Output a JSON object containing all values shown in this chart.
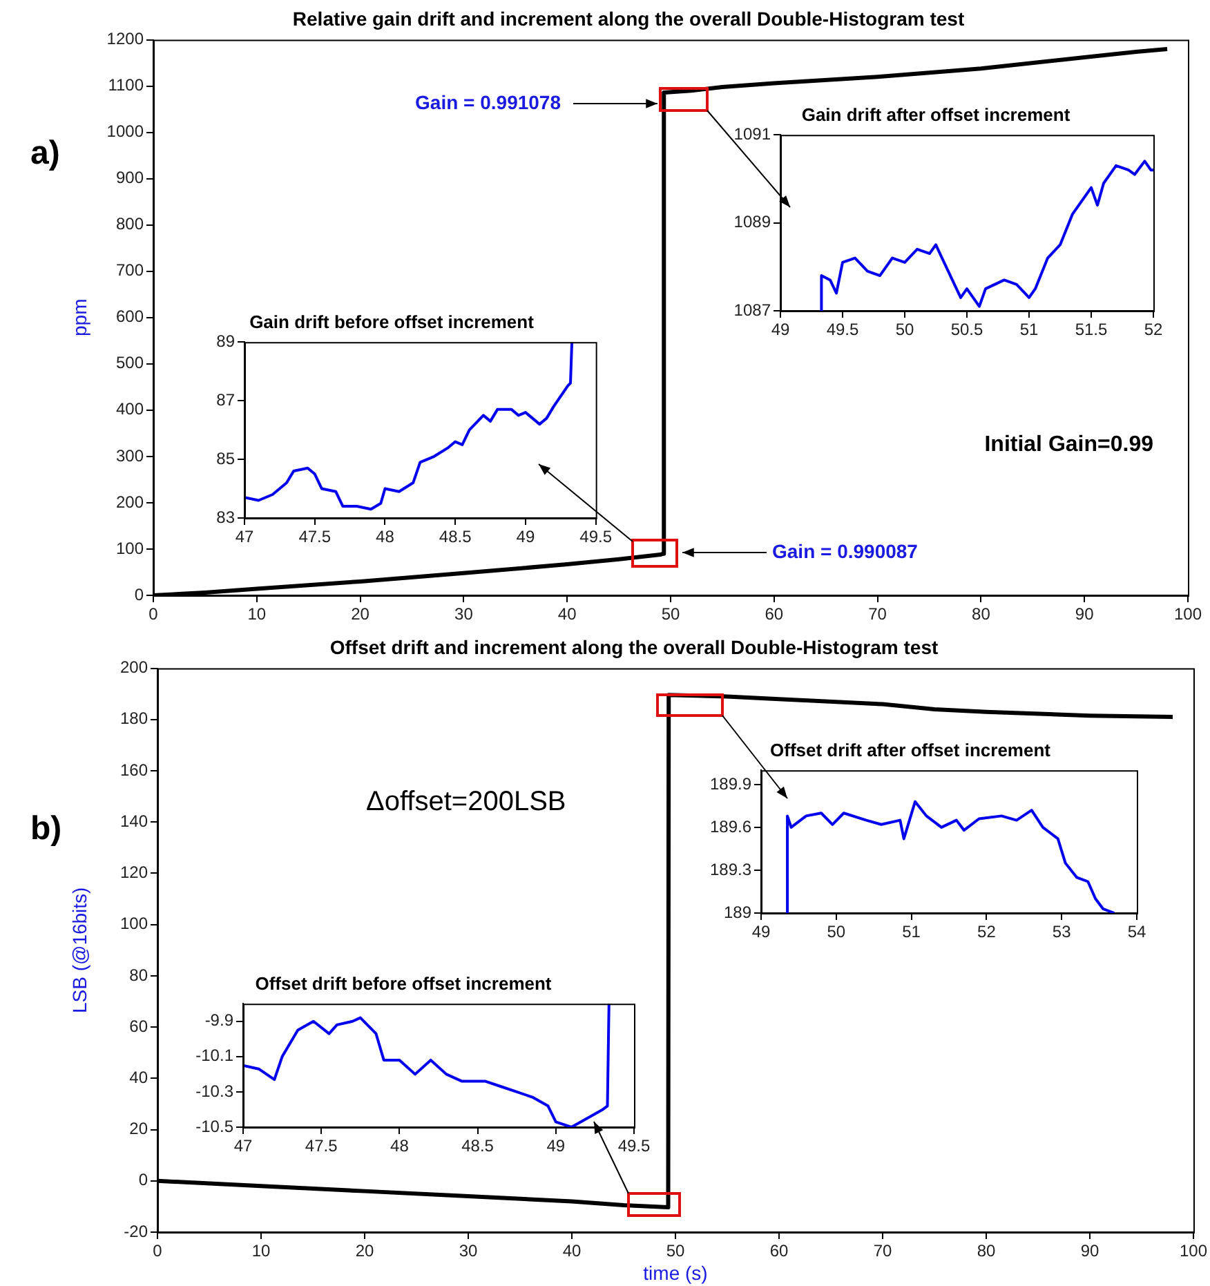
{
  "chart_data": [
    {
      "type": "line",
      "title": "Relative gain drift and increment along the overall Double-Histogram test",
      "ylabel": "ppm",
      "color": "#000000",
      "marker": "none",
      "x": [
        0,
        5,
        10,
        20,
        30,
        40,
        45,
        49,
        49.3,
        49.35,
        52,
        55,
        60,
        70,
        80,
        90,
        95,
        98
      ],
      "values": [
        0,
        6,
        14,
        30,
        48,
        67,
        78,
        88,
        90,
        1086,
        1090,
        1098,
        1106,
        1120,
        1138,
        1162,
        1174,
        1180
      ],
      "xlim": [
        0,
        100
      ],
      "xticks": [
        0,
        10,
        20,
        30,
        40,
        50,
        60,
        70,
        80,
        90,
        100
      ],
      "ylim": [
        0,
        1200
      ],
      "yticks": [
        0,
        100,
        200,
        300,
        400,
        500,
        600,
        700,
        800,
        900,
        1000,
        1100,
        1200
      ],
      "annotations": [
        "a)",
        "Gain = 0.991078",
        "Gain = 0.990087",
        "Initial Gain=0.99"
      ]
    },
    {
      "type": "line",
      "title": "Gain drift after offset increment",
      "color": "#0000ee",
      "marker": "none",
      "x": [
        49.33,
        49.33,
        49.4,
        49.45,
        49.5,
        49.6,
        49.7,
        49.8,
        49.9,
        50.0,
        50.1,
        50.2,
        50.25,
        50.3,
        50.4,
        50.45,
        50.5,
        50.6,
        50.65,
        50.8,
        50.9,
        51.0,
        51.05,
        51.15,
        51.25,
        51.35,
        51.45,
        51.5,
        51.55,
        51.6,
        51.7,
        51.8,
        51.85,
        51.93,
        51.98,
        52
      ],
      "values": [
        1087,
        1087.8,
        1087.7,
        1087.4,
        1088.1,
        1088.2,
        1087.9,
        1087.8,
        1088.2,
        1088.1,
        1088.4,
        1088.3,
        1088.5,
        1088.2,
        1087.6,
        1087.3,
        1087.5,
        1087.1,
        1087.5,
        1087.7,
        1087.6,
        1087.3,
        1087.5,
        1088.2,
        1088.5,
        1089.2,
        1089.6,
        1089.8,
        1089.4,
        1089.9,
        1090.3,
        1090.2,
        1090.1,
        1090.4,
        1090.2,
        1090.2
      ],
      "xlim": [
        49,
        52
      ],
      "xticks": [
        49,
        49.5,
        50,
        50.5,
        51,
        51.5,
        52
      ],
      "ylim": [
        1087,
        1091
      ],
      "yticks": [
        1087,
        1089,
        1091
      ]
    },
    {
      "type": "line",
      "title": "Gain drift before offset increment",
      "color": "#0000ee",
      "marker": "none",
      "x": [
        47,
        47.1,
        47.2,
        47.3,
        47.35,
        47.45,
        47.5,
        47.55,
        47.65,
        47.7,
        47.8,
        47.9,
        47.97,
        48.0,
        48.1,
        48.2,
        48.25,
        48.35,
        48.45,
        48.5,
        48.55,
        48.6,
        48.7,
        48.75,
        48.8,
        48.9,
        48.95,
        49.0,
        49.1,
        49.15,
        49.2,
        49.3,
        49.32,
        49.33
      ],
      "values": [
        83.7,
        83.6,
        83.8,
        84.2,
        84.6,
        84.7,
        84.5,
        84.0,
        83.9,
        83.4,
        83.4,
        83.3,
        83.5,
        84.0,
        83.9,
        84.2,
        84.9,
        85.1,
        85.4,
        85.6,
        85.5,
        86.0,
        86.5,
        86.3,
        86.7,
        86.7,
        86.5,
        86.6,
        86.2,
        86.4,
        86.8,
        87.5,
        87.6,
        89
      ],
      "xlim": [
        47,
        49.5
      ],
      "xticks": [
        47,
        47.5,
        48,
        48.5,
        49,
        49.5
      ],
      "ylim": [
        83,
        89
      ],
      "yticks": [
        83,
        85,
        87,
        89
      ]
    },
    {
      "type": "line",
      "title": "Offset drift and increment along the overall Double-Histogram test",
      "xlabel": "time (s)",
      "ylabel": "LSB (@16bits)",
      "color": "#000000",
      "marker": "none",
      "x": [
        0,
        10,
        20,
        30,
        40,
        45,
        49.3,
        49.35,
        55,
        60,
        70,
        75,
        80,
        90,
        98
      ],
      "values": [
        0,
        -2,
        -4,
        -6,
        -8,
        -9.5,
        -10.3,
        189.6,
        189,
        188,
        186,
        184,
        183,
        181.5,
        181
      ],
      "xlim": [
        0,
        100
      ],
      "xticks": [
        0,
        10,
        20,
        30,
        40,
        50,
        60,
        70,
        80,
        90,
        100
      ],
      "ylim": [
        -20,
        200
      ],
      "yticks": [
        -20,
        0,
        20,
        40,
        60,
        80,
        100,
        120,
        140,
        160,
        180,
        200
      ],
      "annotations": [
        "b)",
        "Δoffset=200LSB"
      ]
    },
    {
      "type": "line",
      "title": "Offset drift after offset increment",
      "color": "#0000ee",
      "marker": "none",
      "x": [
        49.35,
        49.35,
        49.4,
        49.6,
        49.8,
        49.95,
        50.1,
        50.4,
        50.6,
        50.85,
        50.9,
        51.05,
        51.2,
        51.4,
        51.6,
        51.7,
        51.9,
        52.2,
        52.4,
        52.6,
        52.75,
        52.95,
        53.05,
        53.2,
        53.35,
        53.45,
        53.55,
        53.7
      ],
      "values": [
        189,
        189.68,
        189.6,
        189.68,
        189.7,
        189.62,
        189.7,
        189.65,
        189.62,
        189.65,
        189.52,
        189.78,
        189.68,
        189.6,
        189.65,
        189.58,
        189.66,
        189.68,
        189.65,
        189.72,
        189.6,
        189.52,
        189.35,
        189.25,
        189.22,
        189.1,
        189.03,
        189
      ],
      "xlim": [
        49,
        54
      ],
      "xticks": [
        49,
        50,
        51,
        52,
        53,
        54
      ],
      "ylim": [
        189,
        190
      ],
      "yticks": [
        189,
        189.3,
        189.6,
        189.9
      ]
    },
    {
      "type": "line",
      "title": "Offset drift before offset increment",
      "color": "#0000ee",
      "marker": "none",
      "x": [
        47,
        47.1,
        47.2,
        47.25,
        47.35,
        47.45,
        47.55,
        47.6,
        47.7,
        47.75,
        47.85,
        47.9,
        48.0,
        48.1,
        48.2,
        48.3,
        48.4,
        48.55,
        48.65,
        48.75,
        48.85,
        48.95,
        49.0,
        49.1,
        49.2,
        49.3,
        49.33,
        49.34
      ],
      "values": [
        -10.15,
        -10.17,
        -10.23,
        -10.1,
        -9.95,
        -9.9,
        -9.97,
        -9.92,
        -9.9,
        -9.88,
        -9.97,
        -10.12,
        -10.12,
        -10.2,
        -10.12,
        -10.2,
        -10.24,
        -10.24,
        -10.27,
        -10.3,
        -10.33,
        -10.38,
        -10.47,
        -10.5,
        -10.45,
        -10.4,
        -10.38,
        -9.8
      ],
      "xlim": [
        47,
        49.5
      ],
      "xticks": [
        47,
        47.5,
        48,
        48.5,
        49,
        49.5
      ],
      "ylim": [
        -10.5,
        -9.8
      ],
      "yticks": [
        -9.9,
        -10.1,
        -10.3,
        -10.5
      ]
    }
  ]
}
